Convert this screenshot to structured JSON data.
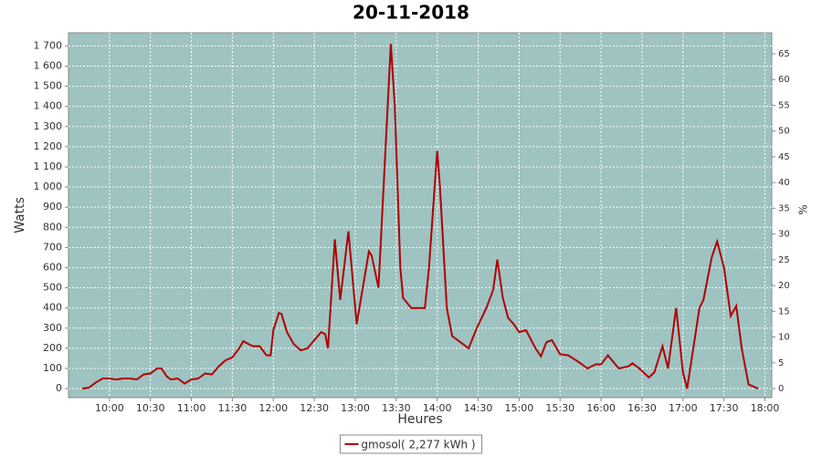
{
  "chart_data": {
    "type": "line",
    "title": "20-11-2018",
    "x_label": "Heures",
    "y_label": "Watts",
    "y2_label": "%",
    "x": [
      "09:40",
      "09:45",
      "09:50",
      "09:55",
      "10:00",
      "10:05",
      "10:10",
      "10:15",
      "10:20",
      "10:25",
      "10:30",
      "10:35",
      "10:38",
      "10:42",
      "10:45",
      "10:50",
      "10:55",
      "11:00",
      "11:05",
      "11:10",
      "11:15",
      "11:20",
      "11:25",
      "11:30",
      "11:35",
      "11:38",
      "11:42",
      "11:45",
      "11:50",
      "11:55",
      "11:58",
      "12:00",
      "12:04",
      "12:06",
      "12:10",
      "12:15",
      "12:20",
      "12:25",
      "12:30",
      "12:35",
      "12:38",
      "12:40",
      "12:45",
      "12:49",
      "12:55",
      "13:01",
      "13:03",
      "13:10",
      "13:12",
      "13:17",
      "13:26",
      "13:29",
      "13:33",
      "13:35",
      "13:41",
      "13:51",
      "13:54",
      "14:00",
      "14:02",
      "14:07",
      "14:11",
      "14:17",
      "14:23",
      "14:29",
      "14:36",
      "14:41",
      "14:44",
      "14:48",
      "14:52",
      "14:56",
      "15:00",
      "15:05",
      "15:12",
      "15:16",
      "15:20",
      "15:24",
      "15:30",
      "15:36",
      "15:44",
      "15:50",
      "15:56",
      "16:00",
      "16:05",
      "16:13",
      "16:20",
      "16:23",
      "16:28",
      "16:35",
      "16:39",
      "16:45",
      "16:49",
      "16:55",
      "17:00",
      "17:03",
      "17:08",
      "17:12",
      "17:15",
      "17:21",
      "17:25",
      "17:30",
      "17:35",
      "17:39",
      "17:43",
      "17:48",
      "17:55"
    ],
    "series": [
      {
        "name": "gmosol( 2,277 kWh )",
        "color": "#b00000",
        "values": [
          0,
          5,
          30,
          50,
          50,
          45,
          50,
          50,
          45,
          70,
          75,
          100,
          100,
          60,
          45,
          50,
          25,
          45,
          50,
          75,
          70,
          110,
          140,
          155,
          200,
          235,
          220,
          210,
          210,
          165,
          165,
          290,
          375,
          370,
          280,
          220,
          190,
          200,
          240,
          280,
          270,
          200,
          740,
          440,
          780,
          320,
          400,
          680,
          660,
          500,
          1710,
          1400,
          600,
          450,
          400,
          400,
          600,
          1180,
          1000,
          400,
          260,
          230,
          200,
          300,
          400,
          490,
          640,
          450,
          350,
          320,
          280,
          290,
          200,
          160,
          230,
          240,
          170,
          165,
          130,
          100,
          120,
          120,
          165,
          100,
          110,
          125,
          100,
          55,
          80,
          210,
          100,
          400,
          80,
          0,
          220,
          400,
          440,
          650,
          730,
          600,
          360,
          410,
          200,
          20,
          0
        ]
      }
    ],
    "xlim": [
      "09:30",
      "18:05"
    ],
    "xticks": [
      "10:00",
      "10:30",
      "11:00",
      "11:30",
      "12:00",
      "12:30",
      "13:00",
      "13:30",
      "14:00",
      "14:30",
      "15:00",
      "15:30",
      "16:00",
      "16:30",
      "17:00",
      "17:30",
      "18:00"
    ],
    "ylim": [
      -45,
      1765
    ],
    "yticks": [
      0,
      100,
      200,
      300,
      400,
      500,
      600,
      700,
      800,
      900,
      {
        "value": 1000,
        "label": "1 000"
      },
      {
        "value": 1100,
        "label": "1 100"
      },
      {
        "value": 1200,
        "label": "1 200"
      },
      {
        "value": 1300,
        "label": "1 300"
      },
      {
        "value": 1400,
        "label": "1 400"
      },
      {
        "value": 1500,
        "label": "1 500"
      },
      {
        "value": 1600,
        "label": "1 600"
      },
      {
        "value": 1700,
        "label": "1 700"
      }
    ],
    "y2lim": [
      -1.77,
      69.07
    ],
    "y2ticks": [
      0,
      5,
      10,
      15,
      20,
      25,
      30,
      35,
      40,
      45,
      50,
      55,
      60,
      65
    ],
    "grid": true,
    "plot_color": "#9ec3c1",
    "legend": "bottom"
  }
}
